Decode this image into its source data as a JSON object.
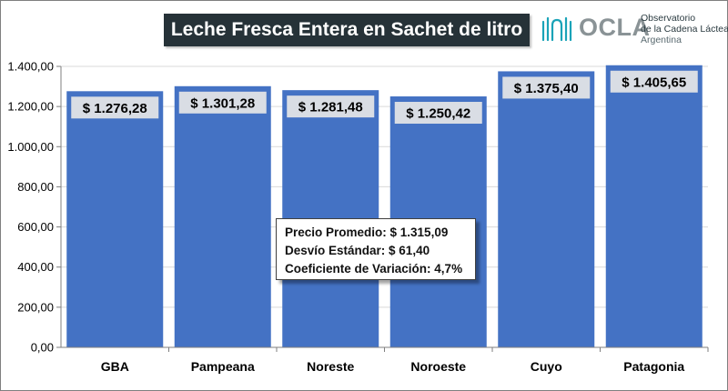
{
  "title": "Leche Fresca Entera en Sachet de litro",
  "logo": {
    "word": "OCLA",
    "line1": "Observatorio",
    "line2": "de la Cadena Láctea",
    "line3": "Argentina",
    "colors": {
      "accent": "#1aa3b8",
      "word": "#8a9396"
    },
    "icon": "milk-drop-logo-icon"
  },
  "stats": {
    "line1": "Precio Promedio: $ 1.315,09",
    "line2": "Desvío Estándar: $ 61,40",
    "line3": "Coeficiente de Variación: 4,7%"
  },
  "chart_data": {
    "type": "bar",
    "title": "Leche Fresca Entera en Sachet de litro",
    "categories": [
      "GBA",
      "Pampeana",
      "Noreste",
      "Noroeste",
      "Cuyo",
      "Patagonia"
    ],
    "values": [
      1276.28,
      1301.28,
      1281.48,
      1250.42,
      1375.4,
      1405.65
    ],
    "data_labels": [
      "$ 1.276,28",
      "$ 1.301,28",
      "$ 1.281,48",
      "$ 1.250,42",
      "$ 1.375,40",
      "$ 1.405,65"
    ],
    "ylim": [
      0,
      1400
    ],
    "yticks": [
      0,
      200,
      400,
      600,
      800,
      1000,
      1200,
      1400
    ],
    "ytick_labels": [
      "0,00",
      "200,00",
      "400,00",
      "600,00",
      "800,00",
      "1.000,00",
      "1.200,00",
      "1.400,00"
    ],
    "grid": true,
    "legend": "none",
    "colors": {
      "bar": "#4472c4",
      "label_bg": "#d9dde4",
      "grid": "#d9d9d9",
      "axis": "#7f7f7f"
    }
  }
}
